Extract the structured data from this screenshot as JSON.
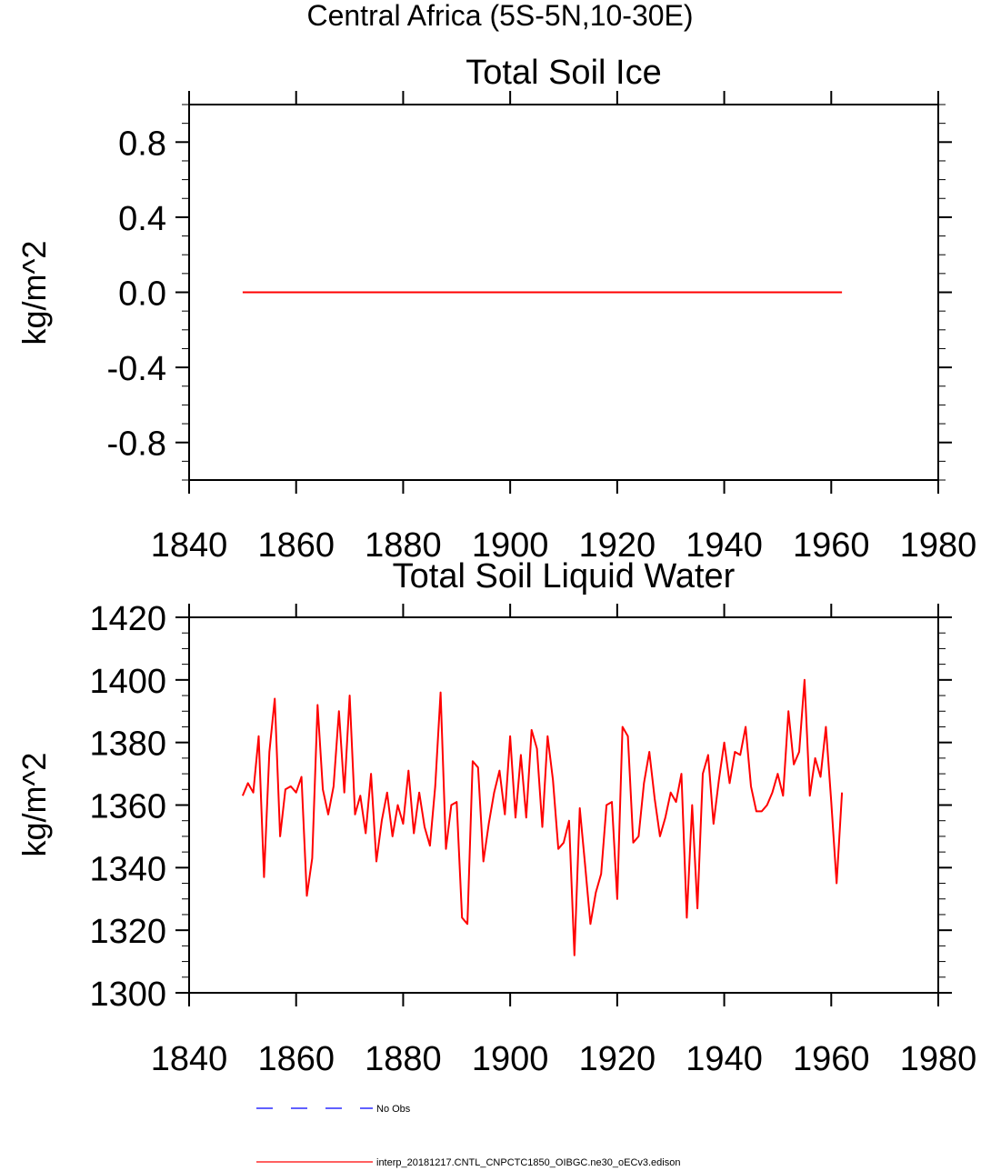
{
  "figure": {
    "main_title": "Central Africa (5S-5N,10-30E)",
    "legend": {
      "entries": [
        {
          "label": "No Obs",
          "color": "#0000ff",
          "style": "dashed"
        },
        {
          "label": "interp_20181217.CNTL_CNPCTC1850_OIBGC.ne30_oECv3.edison",
          "color": "#ff0000",
          "style": "solid"
        }
      ]
    }
  },
  "chart_data": [
    {
      "type": "line",
      "title": "Total Soil Ice",
      "ylabel": "kg/m^2",
      "xlabel": "",
      "xlim": [
        1840,
        1980
      ],
      "ylim": [
        -1.0,
        1.0
      ],
      "xticks": [
        1840,
        1860,
        1880,
        1900,
        1920,
        1940,
        1960,
        1980
      ],
      "yticks": [
        -0.8,
        -0.4,
        0.0,
        0.4,
        0.8
      ],
      "ytick_labels": [
        "-0.8",
        "-0.4",
        "0.0",
        "0.4",
        "0.8"
      ],
      "grid": false,
      "series": [
        {
          "color": "#ff0000",
          "x_start": 1850,
          "x_end": 1962,
          "values": [
            0.0,
            0.0
          ]
        }
      ]
    },
    {
      "type": "line",
      "title": "Total Soil Liquid Water",
      "ylabel": "kg/m^2",
      "xlabel": "",
      "xlim": [
        1840,
        1980
      ],
      "ylim": [
        1300,
        1420
      ],
      "xticks": [
        1840,
        1860,
        1880,
        1900,
        1920,
        1940,
        1960,
        1980
      ],
      "yticks": [
        1300,
        1320,
        1340,
        1360,
        1380,
        1400,
        1420
      ],
      "ytick_labels": [
        "1300",
        "1320",
        "1340",
        "1360",
        "1380",
        "1400",
        "1420"
      ],
      "grid": false,
      "series": [
        {
          "color": "#ff0000",
          "x_start": 1850,
          "x_end": 1962,
          "values": [
            1363,
            1367,
            1364,
            1382,
            1337,
            1377,
            1394,
            1350,
            1365,
            1366,
            1364,
            1369,
            1331,
            1343,
            1392,
            1365,
            1357,
            1366,
            1390,
            1364,
            1395,
            1357,
            1363,
            1351,
            1370,
            1342,
            1355,
            1364,
            1350,
            1360,
            1354,
            1371,
            1351,
            1364,
            1353,
            1347,
            1366,
            1396,
            1346,
            1360,
            1361,
            1324,
            1322,
            1374,
            1372,
            1342,
            1354,
            1364,
            1371,
            1357,
            1382,
            1356,
            1376,
            1356,
            1384,
            1378,
            1353,
            1382,
            1368,
            1346,
            1348,
            1355,
            1312,
            1359,
            1341,
            1322,
            1332,
            1338,
            1360,
            1361,
            1330,
            1385,
            1382,
            1348,
            1350,
            1367,
            1377,
            1362,
            1350,
            1356,
            1364,
            1361,
            1370,
            1324,
            1360,
            1327,
            1370,
            1376,
            1354,
            1368,
            1380,
            1367,
            1377,
            1376,
            1385,
            1366,
            1358,
            1358,
            1360,
            1364,
            1370,
            1363,
            1390,
            1373,
            1377,
            1400,
            1363,
            1375,
            1369,
            1385,
            1361,
            1335,
            1364
          ]
        }
      ]
    }
  ]
}
